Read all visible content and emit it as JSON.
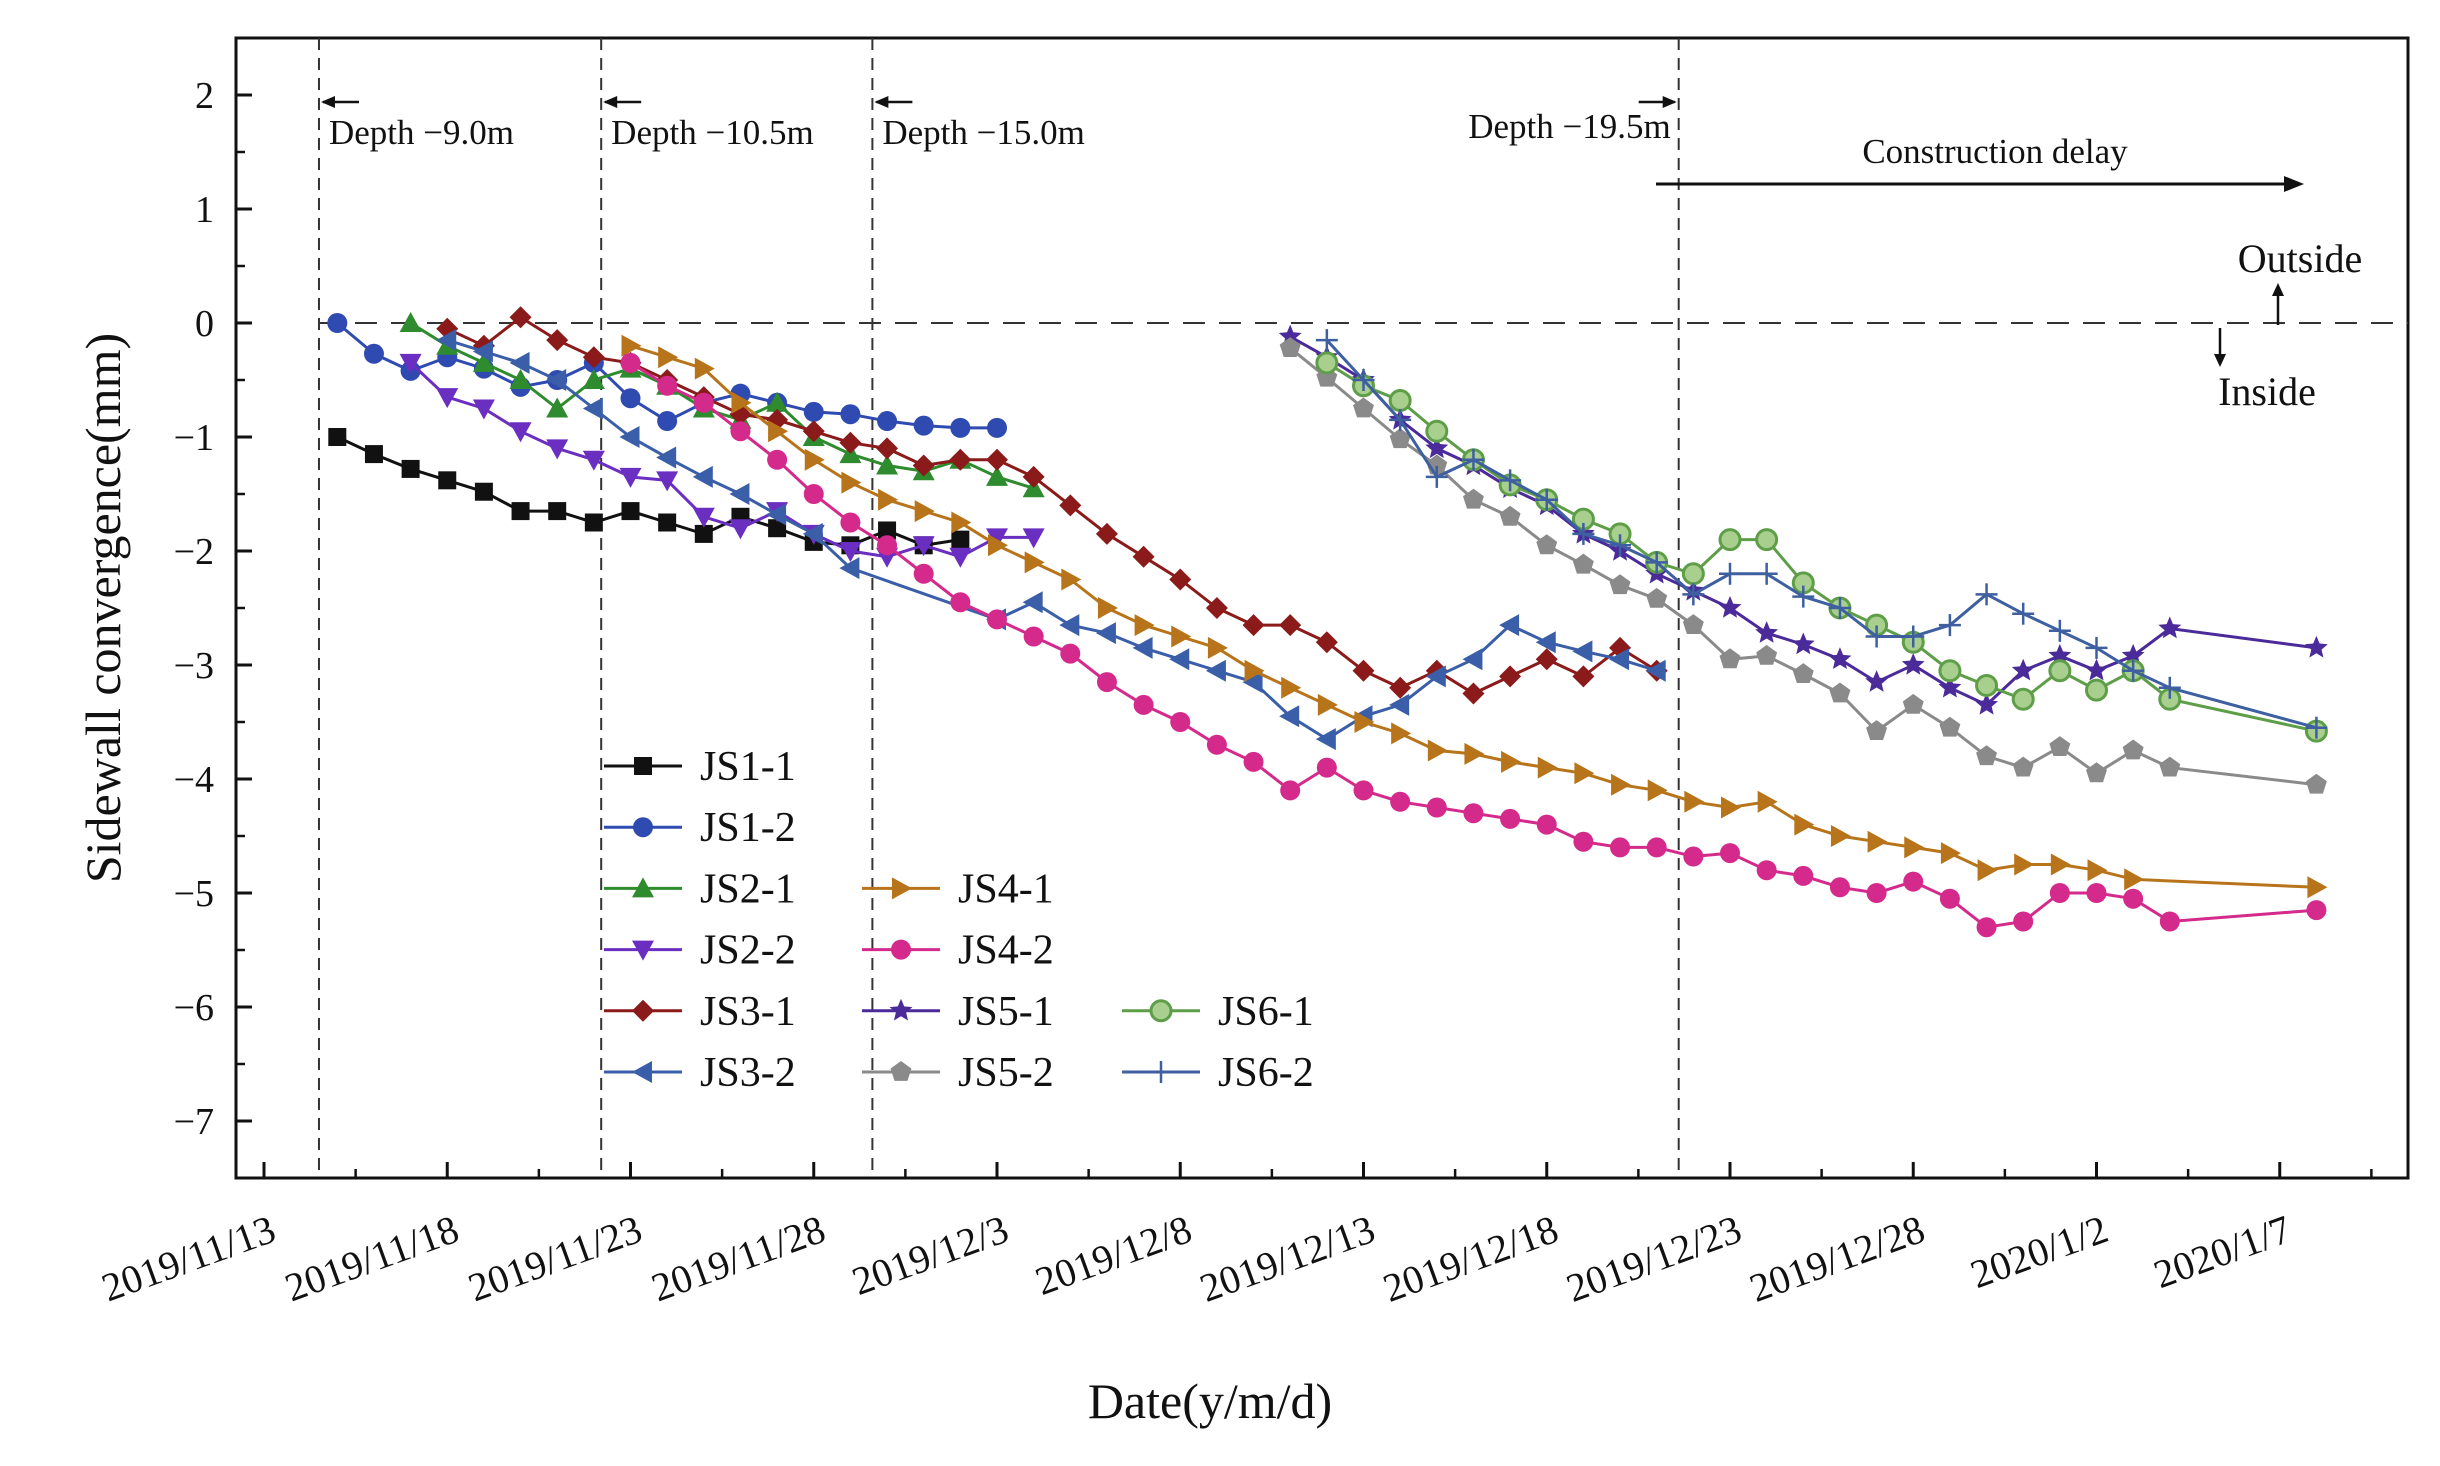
{
  "chart_data": {
    "type": "line",
    "title": "",
    "xlabel": "Date(y/m/d)",
    "ylabel": "Sidewall convergence(mm)",
    "x_unit": "days since 2019/11/13",
    "xlim": [
      0,
      58
    ],
    "ylim": [
      -7.5,
      2.5
    ],
    "x_ticks": [
      0,
      5,
      10,
      15,
      20,
      25,
      30,
      35,
      40,
      45,
      50,
      55
    ],
    "x_tick_labels": [
      "2019/11/13",
      "2019/11/18",
      "2019/11/23",
      "2019/11/28",
      "2019/12/3",
      "2019/12/8",
      "2019/12/13",
      "2019/12/18",
      "2019/12/23",
      "2019/12/28",
      "2020/1/2",
      "2020/1/7"
    ],
    "y_ticks": [
      2,
      1,
      0,
      -1,
      -2,
      -3,
      -4,
      -5,
      -6,
      -7
    ],
    "y_tick_labels": [
      "2",
      "1",
      "0",
      "−1",
      "−2",
      "−3",
      "−4",
      "−5",
      "−6",
      "−7"
    ],
    "grid": false,
    "legend_position": "bottom-left",
    "reference_line": {
      "y": 0,
      "style": "dashed"
    },
    "phase_lines": [
      {
        "x": 1.5,
        "label": "Depth −9.0m"
      },
      {
        "x": 9.2,
        "label": "Depth −10.5m"
      },
      {
        "x": 16.6,
        "label": "Depth −15.0m"
      },
      {
        "x": 38.6,
        "label": "Depth −19.5m"
      }
    ],
    "annotations": {
      "construction_delay": "Construction delay",
      "outside": "Outside",
      "inside": "Inside"
    },
    "series": [
      {
        "name": "JS1-1",
        "color": "#111111",
        "marker": "square",
        "x": [
          2,
          3,
          4,
          5,
          6,
          7,
          8,
          9,
          10,
          11,
          12,
          13,
          14,
          15,
          16,
          17,
          18,
          19
        ],
        "y": [
          -1.0,
          -1.15,
          -1.28,
          -1.38,
          -1.48,
          -1.65,
          -1.65,
          -1.75,
          -1.65,
          -1.75,
          -1.85,
          -1.7,
          -1.8,
          -1.92,
          -1.95,
          -1.82,
          -1.95,
          -1.9
        ]
      },
      {
        "name": "JS1-2",
        "color": "#2F4BB2",
        "marker": "circle",
        "x": [
          2,
          3,
          4,
          5,
          6,
          7,
          8,
          9,
          10,
          11,
          12,
          13,
          14,
          15,
          16,
          17,
          18,
          19,
          20
        ],
        "y": [
          0.0,
          -0.27,
          -0.42,
          -0.3,
          -0.4,
          -0.56,
          -0.5,
          -0.35,
          -0.66,
          -0.86,
          -0.7,
          -0.62,
          -0.7,
          -0.78,
          -0.8,
          -0.86,
          -0.9,
          -0.92,
          -0.92
        ]
      },
      {
        "name": "JS2-1",
        "color": "#2E8B2E",
        "marker": "triangle-up",
        "x": [
          4,
          5,
          6,
          7,
          8,
          9,
          10,
          11,
          12,
          13,
          14,
          15,
          16,
          17,
          18,
          19,
          20,
          21
        ],
        "y": [
          0.0,
          -0.2,
          -0.35,
          -0.5,
          -0.75,
          -0.5,
          -0.4,
          -0.55,
          -0.75,
          -0.85,
          -0.7,
          -1.0,
          -1.15,
          -1.25,
          -1.3,
          -1.2,
          -1.35,
          -1.45
        ]
      },
      {
        "name": "JS2-2",
        "color": "#6A2EC0",
        "marker": "triangle-down",
        "x": [
          4,
          5,
          6,
          7,
          8,
          9,
          10,
          11,
          12,
          13,
          14,
          15,
          16,
          17,
          18,
          19,
          20,
          21
        ],
        "y": [
          -0.35,
          -0.65,
          -0.75,
          -0.95,
          -1.1,
          -1.2,
          -1.35,
          -1.38,
          -1.7,
          -1.8,
          -1.65,
          -1.85,
          -2.0,
          -2.05,
          -1.95,
          -2.05,
          -1.88,
          -1.88
        ]
      },
      {
        "name": "JS3-1",
        "color": "#8B1A1A",
        "marker": "diamond",
        "x": [
          5,
          6,
          7,
          8,
          9,
          10,
          11,
          12,
          13,
          14,
          15,
          16,
          17,
          18,
          19,
          20,
          21,
          22,
          23,
          24,
          25,
          26,
          27,
          28,
          29,
          30,
          31,
          32,
          33,
          34,
          35,
          36,
          37,
          38
        ],
        "y": [
          -0.05,
          -0.2,
          0.05,
          -0.15,
          -0.3,
          -0.35,
          -0.5,
          -0.65,
          -0.8,
          -0.85,
          -0.95,
          -1.05,
          -1.1,
          -1.25,
          -1.2,
          -1.2,
          -1.35,
          -1.6,
          -1.85,
          -2.05,
          -2.25,
          -2.5,
          -2.65,
          -2.65,
          -2.8,
          -3.05,
          -3.2,
          -3.05,
          -3.25,
          -3.1,
          -2.95,
          -3.1,
          -2.85,
          -3.05
        ]
      },
      {
        "name": "JS3-2",
        "color": "#3A5FA8",
        "marker": "triangle-left",
        "x": [
          5,
          6,
          7,
          8,
          9,
          10,
          11,
          12,
          13,
          14,
          15,
          16,
          20,
          21,
          22,
          23,
          24,
          25,
          26,
          27,
          28,
          29,
          30,
          31,
          32,
          33,
          34,
          35,
          36,
          37,
          38
        ],
        "y": [
          -0.15,
          -0.25,
          -0.35,
          -0.5,
          -0.75,
          -1.0,
          -1.18,
          -1.35,
          -1.5,
          -1.68,
          -1.85,
          -2.15,
          -2.6,
          -2.45,
          -2.65,
          -2.72,
          -2.85,
          -2.95,
          -3.05,
          -3.15,
          -3.45,
          -3.65,
          -3.45,
          -3.35,
          -3.1,
          -2.95,
          -2.65,
          -2.8,
          -2.88,
          -2.95,
          -3.05
        ]
      },
      {
        "name": "JS4-1",
        "color": "#B8741A",
        "marker": "triangle-right",
        "x": [
          10,
          11,
          12,
          13,
          14,
          15,
          16,
          17,
          18,
          19,
          20,
          21,
          22,
          23,
          24,
          25,
          26,
          27,
          28,
          29,
          30,
          31,
          32,
          33,
          34,
          35,
          36,
          37,
          38,
          39,
          40,
          41,
          42,
          43,
          44,
          45,
          46,
          47,
          48,
          49,
          50,
          51,
          56
        ],
        "y": [
          -0.2,
          -0.3,
          -0.4,
          -0.7,
          -0.95,
          -1.2,
          -1.4,
          -1.55,
          -1.65,
          -1.75,
          -1.95,
          -2.1,
          -2.25,
          -2.5,
          -2.65,
          -2.75,
          -2.85,
          -3.05,
          -3.2,
          -3.35,
          -3.5,
          -3.6,
          -3.75,
          -3.78,
          -3.85,
          -3.9,
          -3.95,
          -4.05,
          -4.1,
          -4.2,
          -4.25,
          -4.2,
          -4.4,
          -4.5,
          -4.55,
          -4.6,
          -4.65,
          -4.8,
          -4.75,
          -4.75,
          -4.8,
          -4.88,
          -4.95
        ]
      },
      {
        "name": "JS4-2",
        "color": "#D42A8C",
        "marker": "circle",
        "x": [
          10,
          11,
          12,
          13,
          14,
          15,
          16,
          17,
          18,
          19,
          20,
          21,
          22,
          23,
          24,
          25,
          26,
          27,
          28,
          29,
          30,
          31,
          32,
          33,
          34,
          35,
          36,
          37,
          38,
          39,
          40,
          41,
          42,
          43,
          44,
          45,
          46,
          47,
          48,
          49,
          50,
          51,
          52,
          56
        ],
        "y": [
          -0.35,
          -0.55,
          -0.7,
          -0.95,
          -1.2,
          -1.5,
          -1.75,
          -1.95,
          -2.2,
          -2.45,
          -2.6,
          -2.75,
          -2.9,
          -3.15,
          -3.35,
          -3.5,
          -3.7,
          -3.85,
          -4.1,
          -3.9,
          -4.1,
          -4.2,
          -4.25,
          -4.3,
          -4.35,
          -4.4,
          -4.55,
          -4.6,
          -4.6,
          -4.68,
          -4.65,
          -4.8,
          -4.85,
          -4.95,
          -5.0,
          -4.9,
          -5.05,
          -5.3,
          -5.25,
          -5.0,
          -5.0,
          -5.05,
          -5.25,
          -5.15
        ]
      },
      {
        "name": "JS5-1",
        "color": "#4B2A9A",
        "marker": "star",
        "x": [
          28,
          29,
          30,
          31,
          32,
          33,
          34,
          35,
          36,
          37,
          38,
          39,
          40,
          41,
          42,
          43,
          44,
          45,
          46,
          47,
          48,
          49,
          50,
          51,
          52,
          56
        ],
        "y": [
          -0.12,
          -0.3,
          -0.5,
          -0.85,
          -1.1,
          -1.25,
          -1.45,
          -1.6,
          -1.85,
          -2.0,
          -2.2,
          -2.35,
          -2.5,
          -2.72,
          -2.82,
          -2.95,
          -3.15,
          -3.0,
          -3.2,
          -3.35,
          -3.05,
          -2.92,
          -3.05,
          -2.92,
          -2.68,
          -2.85
        ]
      },
      {
        "name": "JS5-2",
        "color": "#8A8A8A",
        "marker": "pentagon",
        "x": [
          28,
          29,
          30,
          31,
          32,
          33,
          34,
          35,
          36,
          37,
          38,
          39,
          40,
          41,
          42,
          43,
          44,
          45,
          46,
          47,
          48,
          49,
          50,
          51,
          52,
          56
        ],
        "y": [
          -0.22,
          -0.48,
          -0.75,
          -1.02,
          -1.25,
          -1.55,
          -1.7,
          -1.95,
          -2.12,
          -2.3,
          -2.42,
          -2.65,
          -2.95,
          -2.92,
          -3.08,
          -3.25,
          -3.58,
          -3.35,
          -3.55,
          -3.8,
          -3.9,
          -3.72,
          -3.95,
          -3.75,
          -3.9,
          -4.05
        ]
      },
      {
        "name": "JS6-1",
        "color": "#5E9E48",
        "marker": "circle-ring",
        "x": [
          29,
          30,
          31,
          32,
          33,
          34,
          35,
          36,
          37,
          38,
          39,
          40,
          41,
          42,
          43,
          44,
          45,
          46,
          47,
          48,
          49,
          50,
          51,
          52,
          56
        ],
        "y": [
          -0.35,
          -0.55,
          -0.68,
          -0.95,
          -1.2,
          -1.42,
          -1.55,
          -1.72,
          -1.85,
          -2.1,
          -2.2,
          -1.9,
          -1.9,
          -2.28,
          -2.5,
          -2.65,
          -2.8,
          -3.05,
          -3.18,
          -3.3,
          -3.05,
          -3.22,
          -3.05,
          -3.3,
          -3.58
        ]
      },
      {
        "name": "JS6-2",
        "color": "#3E5FA0",
        "marker": "plus",
        "x": [
          29,
          30,
          31,
          32,
          33,
          34,
          35,
          36,
          37,
          38,
          39,
          40,
          41,
          42,
          43,
          44,
          45,
          46,
          47,
          48,
          49,
          50,
          51,
          52,
          56
        ],
        "y": [
          -0.15,
          -0.5,
          -0.85,
          -1.35,
          -1.2,
          -1.38,
          -1.55,
          -1.85,
          -1.95,
          -2.1,
          -2.38,
          -2.2,
          -2.2,
          -2.4,
          -2.5,
          -2.75,
          -2.75,
          -2.65,
          -2.38,
          -2.55,
          -2.7,
          -2.85,
          -3.05,
          -3.2,
          -3.55
        ]
      }
    ]
  }
}
